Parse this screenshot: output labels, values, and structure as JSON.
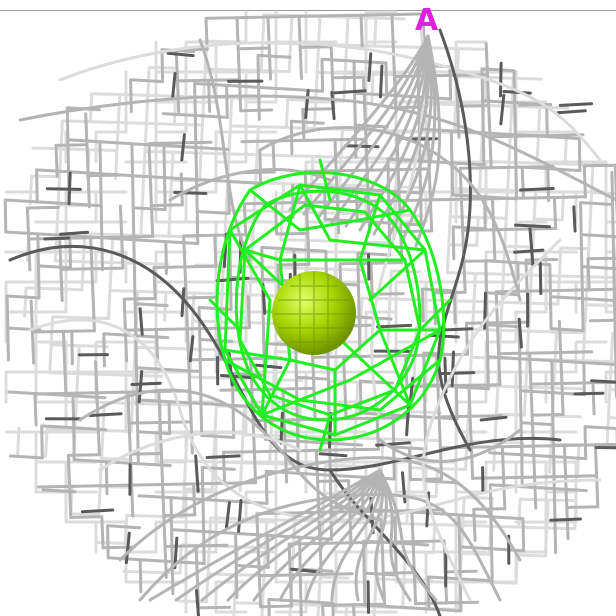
{
  "viewer": {
    "background": "#ffffff",
    "chain_label": "A",
    "label_color": "#e020e0"
  },
  "palette": {
    "grid_light": "#dcdcdc",
    "grid_mid": "#b4b4b4",
    "grid_dark": "#5a5a5a",
    "density_green": "#22ee22",
    "ion_fill": "#a6d400",
    "ion_highlight": "#e4ff6a",
    "ion_shadow": "#6f9400"
  },
  "icons": {
    "ion": "metal-ion-sphere-icon",
    "map": "electron-density-mesh-icon"
  }
}
